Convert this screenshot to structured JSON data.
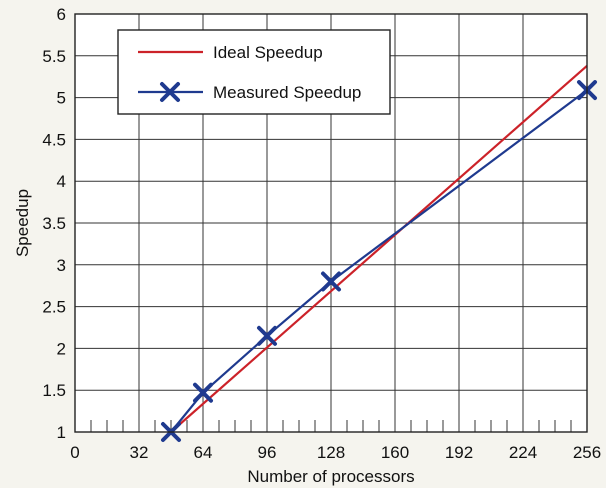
{
  "chart_data": {
    "type": "line",
    "title": "",
    "xlabel": "Number of processors",
    "ylabel": "Speedup",
    "xlim": [
      0,
      256
    ],
    "ylim": [
      1,
      6
    ],
    "xticks": [
      0,
      32,
      64,
      96,
      128,
      160,
      192,
      224,
      256
    ],
    "xtick_labels": [
      "0",
      "32",
      "64",
      "96",
      "128",
      "160",
      "192",
      "224",
      "256"
    ],
    "yticks": [
      1,
      1.5,
      2,
      2.5,
      3,
      3.5,
      4,
      4.5,
      5,
      5.5,
      6
    ],
    "ytick_labels": [
      "1",
      "1.5",
      "2",
      "2.5",
      "3",
      "3.5",
      "4",
      "4.5",
      "5",
      "5.5",
      "6"
    ],
    "grid": true,
    "legend_position": "top-left",
    "series": [
      {
        "name": "Ideal Speedup",
        "color": "#cc2229",
        "marker": "none",
        "x": [
          48,
          256
        ],
        "y": [
          1,
          5.38
        ]
      },
      {
        "name": "Measured Speedup",
        "color": "#1f3a8f",
        "marker": "x",
        "x": [
          48,
          64,
          96,
          128,
          256
        ],
        "y": [
          1,
          1.47,
          2.15,
          2.8,
          5.09
        ]
      }
    ]
  }
}
